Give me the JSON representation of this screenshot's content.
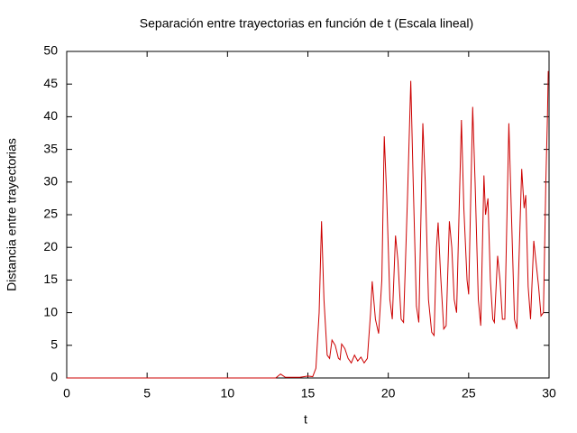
{
  "chart_data": {
    "type": "line",
    "title": "Separación entre trayectorias en función de t (Escala lineal)",
    "x_label": "t",
    "y_label": "Distancia entre trayectorias",
    "x": [
      0,
      13.0,
      13.3,
      13.6,
      14.5,
      15.0,
      15.3,
      15.5,
      15.7,
      15.85,
      16.0,
      16.2,
      16.35,
      16.5,
      16.7,
      16.9,
      17.0,
      17.1,
      17.3,
      17.5,
      17.7,
      17.9,
      18.1,
      18.3,
      18.5,
      18.7,
      18.9,
      19.0,
      19.2,
      19.4,
      19.6,
      19.75,
      19.9,
      20.1,
      20.25,
      20.45,
      20.6,
      20.8,
      20.95,
      21.2,
      21.4,
      21.55,
      21.75,
      21.9,
      22.15,
      22.3,
      22.5,
      22.7,
      22.85,
      23.0,
      23.1,
      23.25,
      23.45,
      23.6,
      23.8,
      23.95,
      24.1,
      24.25,
      24.4,
      24.55,
      24.7,
      24.9,
      25.0,
      25.25,
      25.4,
      25.6,
      25.75,
      25.95,
      26.05,
      26.2,
      26.35,
      26.5,
      26.6,
      26.8,
      26.95,
      27.1,
      27.25,
      27.5,
      27.65,
      27.85,
      28.0,
      28.3,
      28.45,
      28.55,
      28.7,
      28.85,
      29.05,
      29.2,
      29.35,
      29.5,
      29.65,
      29.8,
      29.9,
      29.95
    ],
    "series": [
      {
        "color": "#cc0000",
        "values": [
          0,
          0,
          0.6,
          0.1,
          0.1,
          0.3,
          0.2,
          1.5,
          10,
          24,
          12,
          3.5,
          3,
          5.8,
          5,
          3,
          2.8,
          5.2,
          4.5,
          3,
          2.3,
          3.5,
          2.6,
          3.2,
          2.3,
          3,
          10,
          14.8,
          9,
          6.8,
          15,
          37,
          28,
          12,
          9,
          21.8,
          18,
          9,
          8.5,
          28,
          45.5,
          30,
          11,
          8.5,
          39,
          30,
          12,
          7,
          6.5,
          20,
          23.8,
          16,
          7.5,
          8,
          24,
          20,
          12,
          10,
          25,
          39.5,
          26,
          15,
          12.8,
          41.5,
          30,
          12,
          8,
          31,
          25,
          27.5,
          15,
          9,
          8.5,
          18.7,
          15,
          9,
          9,
          39,
          26,
          9,
          7.5,
          32,
          26,
          28,
          14,
          9,
          21,
          17.5,
          14,
          9.5,
          10,
          30,
          40,
          47
        ]
      }
    ],
    "xlim": [
      0,
      30
    ],
    "xticks": [
      0,
      5,
      10,
      15,
      20,
      25,
      30
    ],
    "ylim": [
      0,
      50
    ],
    "yticks": [
      0,
      5,
      10,
      15,
      20,
      25,
      30,
      35,
      40,
      45,
      50
    ]
  }
}
